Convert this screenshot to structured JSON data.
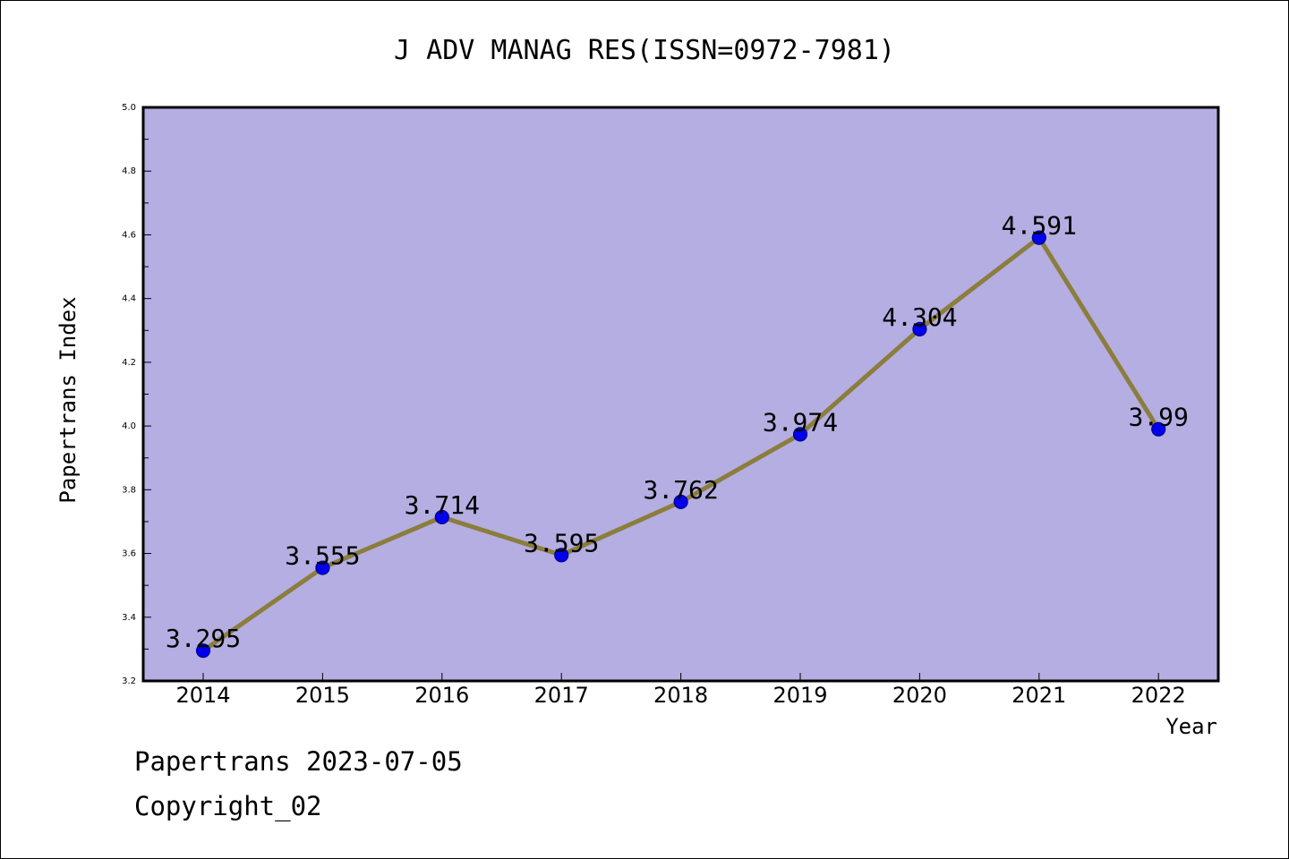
{
  "chart_data": {
    "type": "line",
    "title": "J ADV MANAG RES(ISSN=0972-7981)",
    "xlabel": "Year",
    "ylabel": "Papertrans Index",
    "categories": [
      "2014",
      "2015",
      "2016",
      "2017",
      "2018",
      "2019",
      "2020",
      "2021",
      "2022"
    ],
    "series": [
      {
        "values": [
          3.295,
          3.555,
          3.714,
          3.595,
          3.762,
          3.974,
          4.304,
          4.591,
          3.99
        ]
      }
    ],
    "data_labels": [
      "3.295",
      "3.555",
      "3.714",
      "3.595",
      "3.762",
      "3.974",
      "4.304",
      "4.591",
      "3.99"
    ],
    "ylim": [
      3.2,
      5.0
    ],
    "yticks": [
      "3.2",
      "3.4",
      "3.6",
      "3.8",
      "4.0",
      "4.2",
      "4.4",
      "4.6",
      "4.8",
      "5.0"
    ],
    "grid": false,
    "legend": "none",
    "colors": {
      "plot_background": "#b4aee2",
      "line": "#8b7d3c",
      "marker": "#0000ee",
      "marker_edge": "#00008b"
    }
  },
  "footer": {
    "line1": "Papertrans 2023-07-05",
    "line2": "Copyright_02"
  }
}
